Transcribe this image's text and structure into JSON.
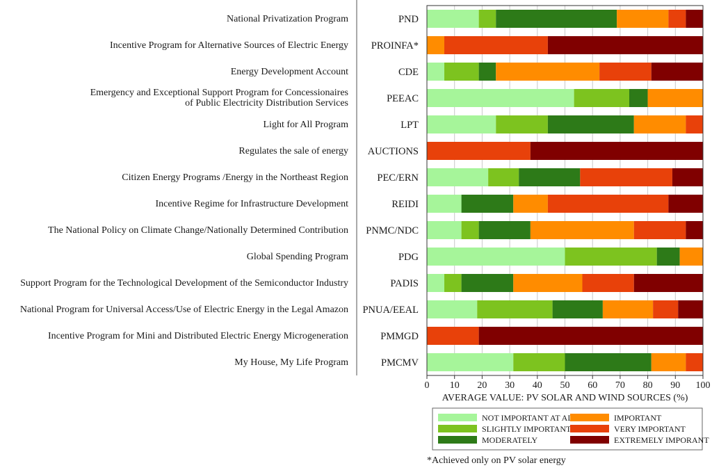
{
  "chart_data": {
    "type": "bar",
    "orientation": "horizontal",
    "stacked": true,
    "xlabel": "AVERAGE VALUE: PV SOLAR AND WIND SOURCES (%)",
    "xlim": [
      0,
      100
    ],
    "xticks": [
      0,
      10,
      20,
      30,
      40,
      50,
      60,
      70,
      80,
      90,
      100
    ],
    "grid": true,
    "legend_position": "bottom",
    "programs": [
      "National Privatization Program",
      "Incentive Program for Alternative Sources of Electric Energy",
      "Energy Development Account",
      "Emergency and Exceptional Support Program for Concessionaires of Public Electricity Distribution Services",
      "Light for All Program",
      "Regulates the sale of energy",
      "Citizen Energy Programs /Energy in the Northeast Region",
      "Incentive Regime for Infrastructure Development",
      "The National Policy on Climate Change/Nationally Determined Contribution",
      "Global Spending Program",
      "Support Program for the Technological Development of the Semiconductor Industry",
      "National Program for Universal Access/Use of Electric Energy in the Legal Amazon",
      "Incentive Program for Mini and Distributed Electric Energy Microgeneration",
      "My House, My Life Program"
    ],
    "program_lines": [
      [
        "National Privatization Program"
      ],
      [
        "Incentive Program for Alternative Sources of Electric Energy"
      ],
      [
        "Energy Development Account"
      ],
      [
        "Emergency and Exceptional Support Program for Concessionaires",
        "of Public Electricity Distribution Services"
      ],
      [
        "Light for All Program"
      ],
      [
        "Regulates the sale of energy"
      ],
      [
        "Citizen Energy Programs /Energy in the Northeast Region"
      ],
      [
        "Incentive Regime for Infrastructure Development"
      ],
      [
        "The National Policy on Climate Change/Nationally Determined Contribution"
      ],
      [
        "Global Spending Program"
      ],
      [
        "Support Program for the Technological Development of the Semiconductor Industry"
      ],
      [
        "National Program for Universal Access/Use of Electric Energy in the Legal Amazon"
      ],
      [
        "Incentive Program for Mini and Distributed Electric Energy Microgeneration"
      ],
      [
        "My House, My Life Program"
      ]
    ],
    "categories": [
      "PND",
      "PROINFA*",
      "CDE",
      "PEEAC",
      "LPT",
      "AUCTIONS",
      "PEC/ERN",
      "REIDI",
      "PNMC/NDC",
      "PDG",
      "PADIS",
      "PNUA/EEAL",
      "PMMGD",
      "PMCMV"
    ],
    "series": [
      {
        "name": "NOT IMPORTANT AT ALL",
        "color": "#a6f59a",
        "values": [
          18.8,
          0,
          6.3,
          53.3,
          25,
          0,
          22.2,
          12.5,
          12.5,
          50,
          6.3,
          18.2,
          0,
          31.3
        ]
      },
      {
        "name": "SLIGHTLY IMPORTANT",
        "color": "#7dc31f",
        "values": [
          6.2,
          0,
          12.5,
          20,
          18.8,
          0,
          11.1,
          0,
          6.3,
          33.3,
          6.2,
          27.3,
          0,
          18.7
        ]
      },
      {
        "name": "MODERATELY",
        "color": "#2d7a18",
        "values": [
          43.8,
          0,
          6.2,
          6.7,
          31.2,
          0,
          22.2,
          18.8,
          18.7,
          8.3,
          18.8,
          18.2,
          0,
          31.3
        ]
      },
      {
        "name": "IMPORTANT",
        "color": "#ff8c00",
        "values": [
          18.7,
          6.3,
          37.5,
          20,
          18.8,
          0,
          0,
          12.5,
          37.5,
          8.4,
          25,
          18.2,
          0,
          12.5
        ]
      },
      {
        "name": "VERY IMPORTANT",
        "color": "#e8410a",
        "values": [
          6.3,
          37.5,
          18.8,
          0,
          6.2,
          37.5,
          33.4,
          43.7,
          18.8,
          0,
          18.7,
          9.1,
          18.8,
          6.2
        ]
      },
      {
        "name": "EXTREMELY IMPORANT",
        "color": "#800000",
        "values": [
          6.2,
          56.2,
          18.7,
          0,
          0,
          62.5,
          11.1,
          12.5,
          6.2,
          0,
          25,
          9.0,
          81.2,
          0
        ]
      }
    ]
  },
  "footnote": "*Achieved only on PV solar energy"
}
